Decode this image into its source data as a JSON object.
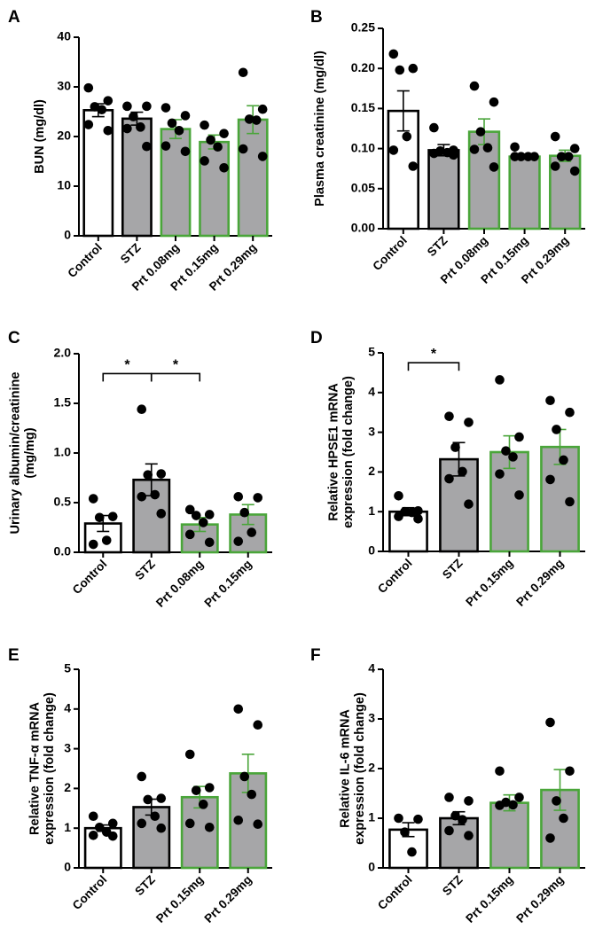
{
  "styles": {
    "control_fill": "#ffffff",
    "bar_fill": "#a6a6a8",
    "control_edge": "#000000",
    "stz_edge": "#000000",
    "treat_edge": "#4aa53a",
    "point_color": "#000000"
  },
  "chart_data": [
    {
      "panel": "A",
      "type": "bar",
      "ylabel": "BUN (mg/dl)",
      "ylim": [
        0,
        40
      ],
      "yticks": [
        0,
        10,
        20,
        30,
        40
      ],
      "ytick_labels": [
        "0",
        "10",
        "20",
        "30",
        "40"
      ],
      "categories": [
        "Control",
        "STZ",
        "Prt 0.08mg",
        "Prt 0.15mg",
        "Prt 0.29mg"
      ],
      "groups": [
        "control",
        "stz",
        "treat",
        "treat",
        "treat"
      ],
      "means": [
        25.3,
        23.6,
        21.5,
        18.9,
        23.4
      ],
      "sem": [
        1.3,
        1.3,
        1.9,
        1.4,
        2.8
      ],
      "points": [
        [
          29.8,
          27.2,
          26.0,
          25.4,
          22.4,
          21.2
        ],
        [
          26.1,
          26.1,
          24.0,
          21.9,
          21.6,
          18.0
        ],
        [
          25.8,
          24.2,
          22.7,
          21.2,
          18.1,
          17.0
        ],
        [
          22.3,
          20.6,
          19.3,
          17.9,
          15.1,
          13.7
        ],
        [
          32.9,
          25.5,
          23.5,
          23.3,
          17.5,
          16.0
        ]
      ],
      "significance": []
    },
    {
      "panel": "B",
      "type": "bar",
      "ylabel": "Plasma creatinine (mg/dl)",
      "ylim": [
        0,
        0.25
      ],
      "yticks": [
        0,
        0.05,
        0.1,
        0.15,
        0.2,
        0.25
      ],
      "ytick_labels": [
        "0.00",
        "0.05",
        "0.10",
        "0.15",
        "0.20",
        "0.25"
      ],
      "categories": [
        "Control",
        "STZ",
        "Prt 0.08mg",
        "Prt 0.15mg",
        "Prt 0.29mg"
      ],
      "groups": [
        "control",
        "stz",
        "treat",
        "treat",
        "treat"
      ],
      "means": [
        0.147,
        0.098,
        0.121,
        0.09,
        0.091
      ],
      "sem": [
        0.025,
        0.007,
        0.016,
        0.003,
        0.007
      ],
      "points": [
        [
          0.218,
          0.2,
          0.198,
          0.115,
          0.098,
          0.078
        ],
        [
          0.126,
          0.098,
          0.097,
          0.095,
          0.094,
          0.092
        ],
        [
          0.178,
          0.158,
          0.121,
          0.101,
          0.099,
          0.077
        ],
        [
          0.102,
          0.09,
          0.09,
          0.09,
          0.09
        ],
        [
          0.115,
          0.1,
          0.09,
          0.09,
          0.078,
          0.072
        ]
      ],
      "significance": []
    },
    {
      "panel": "C",
      "type": "bar",
      "ylabel": "Urinary albumin/creatinine\n(mg/mg)",
      "ylim": [
        0,
        2.0
      ],
      "yticks": [
        0,
        0.5,
        1.0,
        1.5,
        2.0
      ],
      "ytick_labels": [
        "0.0",
        "0.5",
        "1.0",
        "1.5",
        "2.0"
      ],
      "categories": [
        "Control",
        "STZ",
        "Prt 0.08mg",
        "Prt 0.15mg"
      ],
      "groups": [
        "control",
        "stz",
        "treat",
        "treat"
      ],
      "means": [
        0.29,
        0.73,
        0.28,
        0.38
      ],
      "sem": [
        0.08,
        0.16,
        0.07,
        0.1
      ],
      "points": [
        [
          0.54,
          0.36,
          0.35,
          0.12,
          0.08
        ],
        [
          1.44,
          0.79,
          0.78,
          0.58,
          0.56,
          0.39
        ],
        [
          0.43,
          0.38,
          0.37,
          0.3,
          0.18,
          0.1
        ],
        [
          0.56,
          0.55,
          0.4,
          0.2,
          0.11
        ]
      ],
      "significance": [
        {
          "from": 0,
          "to": 1,
          "label": "*",
          "y": 1.8
        },
        {
          "from": 1,
          "to": 2,
          "label": "*",
          "y": 1.8
        }
      ]
    },
    {
      "panel": "D",
      "type": "bar",
      "ylabel": "Relative HPSE1 mRNA\nexpression (fold change)",
      "ylim": [
        0,
        5
      ],
      "yticks": [
        0,
        1,
        2,
        3,
        4,
        5
      ],
      "ytick_labels": [
        "0",
        "1",
        "2",
        "3",
        "4",
        "5"
      ],
      "categories": [
        "Control",
        "STZ",
        "Prt 0.15mg",
        "Prt 0.29mg"
      ],
      "groups": [
        "control",
        "stz",
        "treat",
        "treat"
      ],
      "means": [
        1.0,
        2.32,
        2.5,
        2.63
      ],
      "sem": [
        0.1,
        0.42,
        0.41,
        0.44
      ],
      "points": [
        [
          1.4,
          1.02,
          1.0,
          0.98,
          0.88,
          0.82
        ],
        [
          3.4,
          3.25,
          2.62,
          2.01,
          1.83,
          1.19
        ],
        [
          4.32,
          2.88,
          2.53,
          2.38,
          1.95,
          1.42
        ],
        [
          3.8,
          3.5,
          3.07,
          2.3,
          1.81,
          1.25
        ]
      ],
      "significance": [
        {
          "from": 0,
          "to": 1,
          "label": "*",
          "y": 4.75
        }
      ]
    },
    {
      "panel": "E",
      "type": "bar",
      "ylabel": "Relative TNF-α mRNA\nexpression (fold change)",
      "ylim": [
        0,
        5
      ],
      "yticks": [
        0,
        1,
        2,
        3,
        4,
        5
      ],
      "ytick_labels": [
        "0",
        "1",
        "2",
        "3",
        "4",
        "5"
      ],
      "categories": [
        "Control",
        "STZ",
        "Prt 0.15mg",
        "Prt 0.29mg"
      ],
      "groups": [
        "control",
        "stz",
        "treat",
        "treat"
      ],
      "means": [
        1.0,
        1.53,
        1.78,
        2.38
      ],
      "sem": [
        0.08,
        0.2,
        0.27,
        0.48
      ],
      "points": [
        [
          1.3,
          1.12,
          1.02,
          0.9,
          0.82,
          0.8
        ],
        [
          2.3,
          1.75,
          1.72,
          1.3,
          1.12,
          1.0
        ],
        [
          2.86,
          2.02,
          1.95,
          1.6,
          1.12,
          1.02
        ],
        [
          4.0,
          3.6,
          2.3,
          1.85,
          1.2,
          1.1
        ]
      ],
      "significance": []
    },
    {
      "panel": "F",
      "type": "bar",
      "ylabel": "Relative IL-6 mRNA\nexpression (fold change)",
      "ylim": [
        0,
        4
      ],
      "yticks": [
        0,
        1,
        2,
        3,
        4
      ],
      "ytick_labels": [
        "0",
        "1",
        "2",
        "3",
        "4"
      ],
      "categories": [
        "Control",
        "STZ",
        "Prt 0.15mg",
        "Prt 0.29mg"
      ],
      "groups": [
        "control",
        "stz",
        "treat",
        "treat"
      ],
      "means": [
        0.77,
        1.0,
        1.31,
        1.57
      ],
      "sem": [
        0.14,
        0.13,
        0.16,
        0.41
      ],
      "points": [
        [
          1.0,
          0.98,
          0.72,
          0.32
        ],
        [
          1.42,
          1.35,
          1.05,
          0.97,
          0.75,
          0.65
        ],
        [
          1.95,
          1.42,
          1.32,
          1.27,
          1.26
        ],
        [
          2.93,
          1.95,
          1.35,
          1.0,
          0.6
        ]
      ],
      "significance": []
    }
  ]
}
